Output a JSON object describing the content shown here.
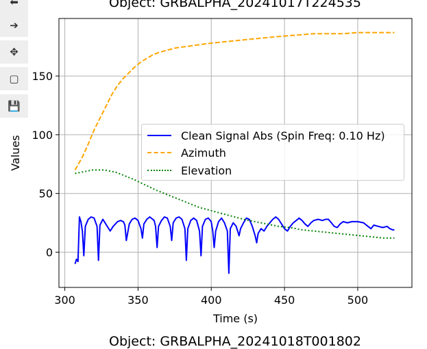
{
  "toolbar": {
    "buttons": [
      {
        "name": "back-button",
        "glyph": "⬅"
      },
      {
        "name": "forward-button",
        "glyph": "➔"
      },
      {
        "name": "pan-button",
        "glyph": "✥"
      },
      {
        "name": "zoom-button",
        "glyph": "▢"
      },
      {
        "name": "save-button",
        "glyph": "💾"
      }
    ]
  },
  "chart_data": {
    "type": "line",
    "title": "Object: GRBALPHA_20241017T224535",
    "xlabel": "Time (s)",
    "ylabel": "Values",
    "xlim": [
      296,
      537
    ],
    "ylim": [
      -30,
      199
    ],
    "xticks": [
      300,
      350,
      400,
      450,
      500
    ],
    "yticks": [
      0,
      50,
      100,
      150
    ],
    "grid": true,
    "legend_position": "center-right",
    "series": [
      {
        "name": "Clean Signal Abs (Spin Freq: 0.10 Hz)",
        "color": "#0000ff",
        "style": "solid",
        "points": [
          [
            307,
            -10
          ],
          [
            308,
            -6
          ],
          [
            309,
            -8
          ],
          [
            310,
            30
          ],
          [
            311,
            26
          ],
          [
            312,
            18
          ],
          [
            313,
            -3
          ],
          [
            314,
            22
          ],
          [
            316,
            28
          ],
          [
            318,
            30
          ],
          [
            320,
            29
          ],
          [
            322,
            22
          ],
          [
            323,
            -7
          ],
          [
            324,
            23
          ],
          [
            326,
            28
          ],
          [
            329,
            22
          ],
          [
            331,
            18
          ],
          [
            333,
            22
          ],
          [
            336,
            26
          ],
          [
            338,
            27
          ],
          [
            340,
            26
          ],
          [
            341,
            23
          ],
          [
            342,
            10
          ],
          [
            344,
            24
          ],
          [
            346,
            28
          ],
          [
            348,
            29
          ],
          [
            350,
            27
          ],
          [
            352,
            20
          ],
          [
            353,
            12
          ],
          [
            354,
            24
          ],
          [
            356,
            28
          ],
          [
            358,
            30
          ],
          [
            361,
            27
          ],
          [
            362,
            22
          ],
          [
            363,
            4
          ],
          [
            364,
            22
          ],
          [
            366,
            27
          ],
          [
            368,
            30
          ],
          [
            370,
            29
          ],
          [
            372,
            22
          ],
          [
            373,
            10
          ],
          [
            374,
            25
          ],
          [
            376,
            29
          ],
          [
            378,
            30
          ],
          [
            380,
            28
          ],
          [
            382,
            20
          ],
          [
            383,
            -7
          ],
          [
            384,
            20
          ],
          [
            386,
            27
          ],
          [
            388,
            29
          ],
          [
            390,
            27
          ],
          [
            392,
            18
          ],
          [
            393,
            -3
          ],
          [
            394,
            22
          ],
          [
            396,
            28
          ],
          [
            398,
            29
          ],
          [
            400,
            26
          ],
          [
            401,
            18
          ],
          [
            402,
            4
          ],
          [
            403,
            18
          ],
          [
            405,
            26
          ],
          [
            407,
            29
          ],
          [
            409,
            25
          ],
          [
            411,
            18
          ],
          [
            412,
            -18
          ],
          [
            413,
            20
          ],
          [
            415,
            25
          ],
          [
            417,
            22
          ],
          [
            419,
            14
          ],
          [
            420,
            20
          ],
          [
            422,
            25
          ],
          [
            424,
            29
          ],
          [
            426,
            28
          ],
          [
            428,
            22
          ],
          [
            430,
            14
          ],
          [
            431,
            8
          ],
          [
            432,
            16
          ],
          [
            434,
            20
          ],
          [
            436,
            18
          ],
          [
            438,
            22
          ],
          [
            440,
            25
          ],
          [
            442,
            28
          ],
          [
            444,
            30
          ],
          [
            446,
            28
          ],
          [
            448,
            24
          ],
          [
            450,
            20
          ],
          [
            452,
            18
          ],
          [
            454,
            22
          ],
          [
            456,
            25
          ],
          [
            458,
            27
          ],
          [
            460,
            29
          ],
          [
            462,
            27
          ],
          [
            464,
            24
          ],
          [
            466,
            22
          ],
          [
            468,
            25
          ],
          [
            470,
            27
          ],
          [
            473,
            28
          ],
          [
            476,
            27
          ],
          [
            478,
            28
          ],
          [
            480,
            28
          ],
          [
            482,
            25
          ],
          [
            484,
            22
          ],
          [
            486,
            21
          ],
          [
            488,
            24
          ],
          [
            490,
            26
          ],
          [
            493,
            25
          ],
          [
            496,
            26
          ],
          [
            500,
            26
          ],
          [
            504,
            25
          ],
          [
            507,
            22
          ],
          [
            509,
            20
          ],
          [
            511,
            23
          ],
          [
            514,
            22
          ],
          [
            517,
            21
          ],
          [
            520,
            22
          ],
          [
            522,
            20
          ],
          [
            524,
            19
          ],
          [
            525,
            19
          ]
        ]
      },
      {
        "name": "Azimuth",
        "color": "#ffa500",
        "style": "dashed",
        "points": [
          [
            307,
            70
          ],
          [
            312,
            81
          ],
          [
            316,
            92
          ],
          [
            320,
            104
          ],
          [
            324,
            114
          ],
          [
            328,
            124
          ],
          [
            332,
            134
          ],
          [
            336,
            142
          ],
          [
            340,
            148
          ],
          [
            344,
            153
          ],
          [
            348,
            158
          ],
          [
            352,
            162
          ],
          [
            356,
            165
          ],
          [
            360,
            168
          ],
          [
            364,
            170
          ],
          [
            370,
            172
          ],
          [
            376,
            174
          ],
          [
            382,
            175
          ],
          [
            388,
            176
          ],
          [
            394,
            177
          ],
          [
            400,
            178
          ],
          [
            408,
            179
          ],
          [
            416,
            180
          ],
          [
            424,
            181
          ],
          [
            432,
            182
          ],
          [
            440,
            183
          ],
          [
            450,
            184
          ],
          [
            460,
            185
          ],
          [
            470,
            186
          ],
          [
            480,
            186
          ],
          [
            490,
            186
          ],
          [
            500,
            187
          ],
          [
            510,
            187
          ],
          [
            520,
            187
          ],
          [
            525,
            187
          ]
        ]
      },
      {
        "name": "Elevation",
        "color": "#008000",
        "style": "dotted",
        "points": [
          [
            307,
            67
          ],
          [
            311,
            68
          ],
          [
            315,
            69
          ],
          [
            319,
            70
          ],
          [
            323,
            70
          ],
          [
            327,
            70
          ],
          [
            331,
            69
          ],
          [
            335,
            68
          ],
          [
            339,
            66
          ],
          [
            343,
            64
          ],
          [
            347,
            62
          ],
          [
            352,
            59
          ],
          [
            357,
            56
          ],
          [
            362,
            53
          ],
          [
            368,
            50
          ],
          [
            374,
            47
          ],
          [
            380,
            44
          ],
          [
            386,
            41
          ],
          [
            392,
            38
          ],
          [
            398,
            36
          ],
          [
            404,
            34
          ],
          [
            410,
            32
          ],
          [
            416,
            30
          ],
          [
            422,
            28
          ],
          [
            430,
            26
          ],
          [
            438,
            24
          ],
          [
            446,
            22
          ],
          [
            454,
            21
          ],
          [
            462,
            19
          ],
          [
            470,
            18
          ],
          [
            478,
            17
          ],
          [
            486,
            16
          ],
          [
            494,
            15
          ],
          [
            502,
            14
          ],
          [
            510,
            13
          ],
          [
            518,
            12
          ],
          [
            525,
            12
          ]
        ]
      }
    ]
  },
  "bottom_title": "Object: GRBALPHA_20241018T001802"
}
